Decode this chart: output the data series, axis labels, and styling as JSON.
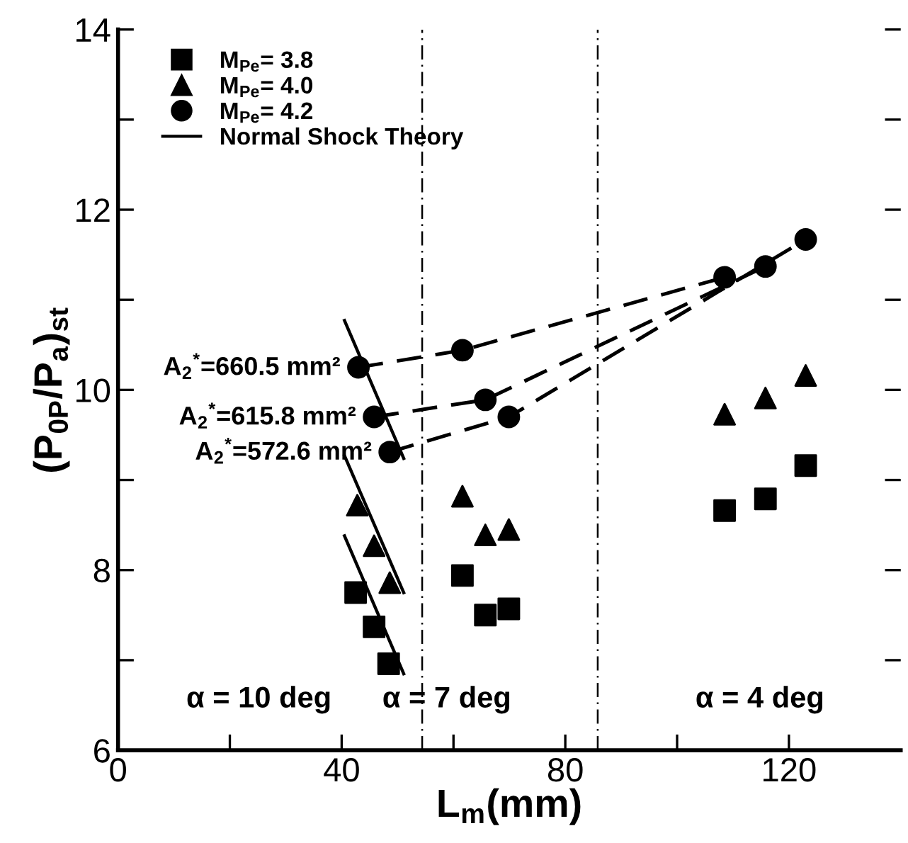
{
  "chart_data": {
    "type": "scatter",
    "xlabel": "L$_{m}$(mm)",
    "ylabel": "(P$_{0P}$/P$_{a}$)$_{st}$",
    "xlim": [
      0,
      140
    ],
    "ylim": [
      6,
      14
    ],
    "xticks": [
      0,
      {
        "value": 20,
        "label": null
      },
      40,
      {
        "value": 60,
        "label": null
      },
      80,
      {
        "value": 100,
        "label": null
      },
      120
    ],
    "yticks": [
      6,
      {
        "value": 7,
        "label": null
      },
      8,
      {
        "value": 9,
        "label": null
      },
      10,
      {
        "value": 11,
        "label": null
      },
      12,
      {
        "value": 13,
        "label": null
      },
      14
    ],
    "grid": false,
    "legend": "top left",
    "series": [
      {
        "name": "M$_{Pe}$= 3.8",
        "color": "#000000",
        "marker": "square",
        "x": [
          42.5,
          45.8,
          48.4,
          61.6,
          65.7,
          69.9,
          108.5,
          115.8,
          123.0
        ],
        "values": [
          7.75,
          7.37,
          6.96,
          7.94,
          7.5,
          7.57,
          8.66,
          8.79,
          9.16
        ]
      },
      {
        "name": "M$_{Pe}$= 4.0",
        "color": "#000000",
        "marker": "triangle",
        "x": [
          42.8,
          45.8,
          48.6,
          61.6,
          65.7,
          69.9,
          108.5,
          115.8,
          123.0
        ],
        "values": [
          8.72,
          8.27,
          7.86,
          8.82,
          8.39,
          8.45,
          9.73,
          9.91,
          10.16
        ]
      },
      {
        "name": "M$_{Pe}$= 4.2",
        "color": "#000000",
        "marker": "circle",
        "x": [
          43.0,
          45.8,
          48.6,
          61.6,
          65.7,
          69.9,
          108.5,
          115.8,
          123.0
        ],
        "values": [
          10.25,
          9.7,
          9.31,
          10.44,
          9.89,
          9.7,
          11.25,
          11.37,
          11.67
        ]
      },
      {
        "name": "Normal Shock Theory",
        "type": "line",
        "line_style": "solid",
        "color": "#000000",
        "x": [
          40.5,
          51.1
        ],
        "values": [
          8.38,
          6.85
        ]
      },
      {
        "type": "line",
        "line_style": "solid",
        "color": "#000000",
        "x": [
          40.5,
          51.1
        ],
        "values": [
          9.27,
          7.75
        ]
      },
      {
        "type": "line",
        "line_style": "solid",
        "color": "#000000",
        "x": [
          40.5,
          51.1
        ],
        "values": [
          10.77,
          9.24
        ]
      },
      {
        "type": "line",
        "line_style": "dashed",
        "color": "#000000",
        "x": [
          43.0,
          61.6,
          108.5
        ],
        "values": [
          10.25,
          10.44,
          11.25
        ]
      },
      {
        "type": "line",
        "line_style": "dashed",
        "color": "#000000",
        "x": [
          45.8,
          65.7,
          115.8
        ],
        "values": [
          9.7,
          9.89,
          11.37
        ]
      },
      {
        "type": "line",
        "line_style": "dashed",
        "color": "#000000",
        "x": [
          48.6,
          69.9,
          123.0
        ],
        "values": [
          9.31,
          9.7,
          11.67
        ]
      }
    ],
    "ref_lines": [
      {
        "axis": "x",
        "value": 54.4,
        "line_style": "dashdot",
        "color": "#000000"
      },
      {
        "axis": "x",
        "value": 85.8,
        "line_style": "dashdot",
        "color": "#000000"
      }
    ],
    "annotations": [
      {
        "text": "A$_{2}$$^{*}$=660.5 mm²",
        "x": 43.0,
        "y": 10.25
      },
      {
        "text": "A$_{2}$$^{*}$=615.8 mm²",
        "x": 45.8,
        "y": 9.7
      },
      {
        "text": "A$_{2}$$^{*}$=572.6 mm²",
        "x": 48.6,
        "y": 9.31
      },
      "α = 10 deg",
      "α = 7 deg",
      "α = 4 deg"
    ]
  }
}
